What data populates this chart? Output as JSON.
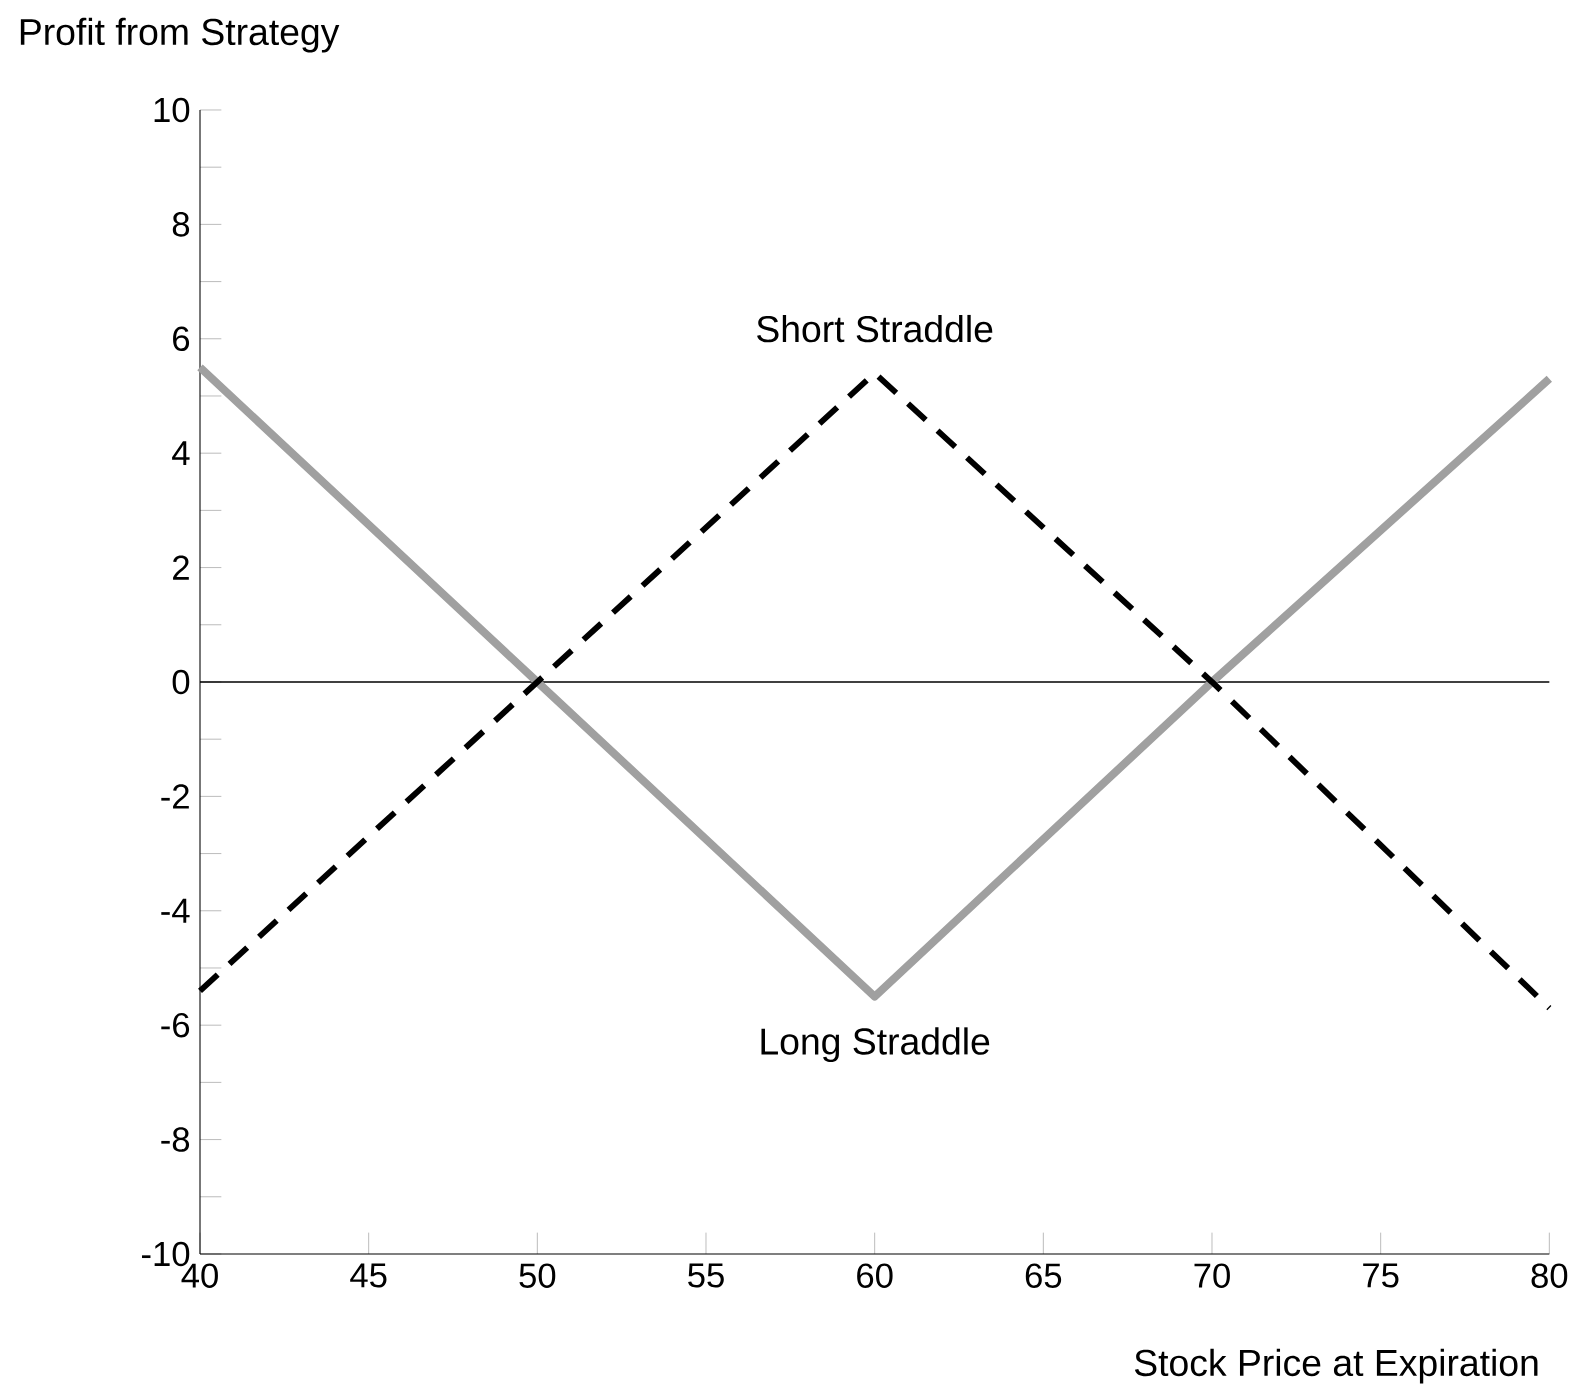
{
  "chart_data": {
    "type": "line",
    "xlabel": "Stock Price at Expiration",
    "ylabel": "Profit from Strategy",
    "xlim": [
      40,
      80
    ],
    "ylim": [
      -10,
      10
    ],
    "xticks": [
      40,
      45,
      50,
      55,
      60,
      65,
      70,
      75,
      80
    ],
    "yticks": [
      -10,
      -8,
      -6,
      -4,
      -2,
      0,
      2,
      4,
      6,
      8,
      10
    ],
    "grid": false,
    "legend": false,
    "ref_lines": [
      {
        "axis": "y",
        "value": 0,
        "color": "#000000"
      }
    ],
    "series": [
      {
        "name": "Long Straddle",
        "color": "#a0a0a0",
        "line_style": "solid",
        "x": [
          40,
          50,
          60,
          70,
          80
        ],
        "values": [
          5.5,
          0,
          -5.5,
          0,
          5.3
        ]
      },
      {
        "name": "Short Straddle",
        "color": "#000000",
        "line_style": "dashed",
        "x": [
          40,
          50,
          60,
          70,
          80
        ],
        "values": [
          -5.4,
          0,
          5.4,
          0,
          -5.7
        ]
      }
    ]
  }
}
